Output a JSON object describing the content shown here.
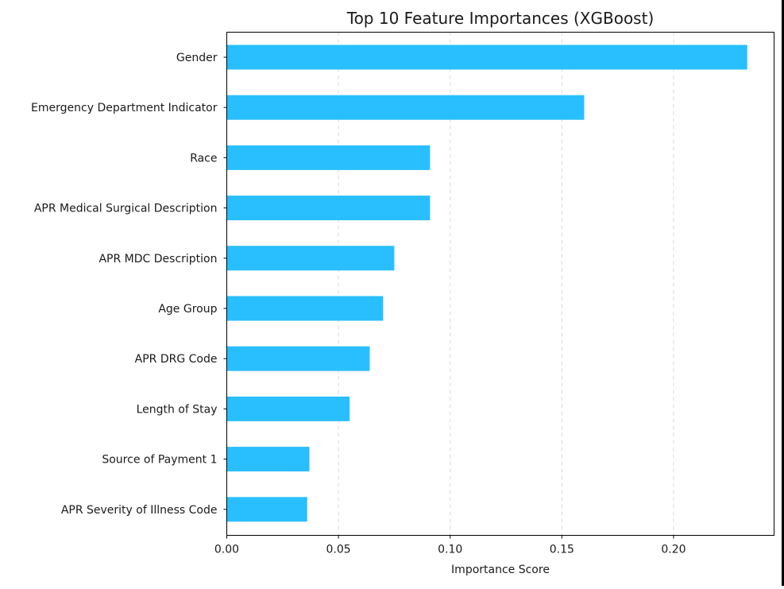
{
  "chart_data": {
    "type": "bar",
    "orientation": "horizontal",
    "title": "Top 10 Feature Importances (XGBoost)",
    "xlabel": "Importance Score",
    "ylabel": "",
    "xlim": [
      0,
      0.245
    ],
    "xticks": [
      0.0,
      0.05,
      0.1,
      0.15,
      0.2
    ],
    "xtick_labels": [
      "0.00",
      "0.05",
      "0.10",
      "0.15",
      "0.20"
    ],
    "grid": "x-dashed",
    "bar_color": "#29BFFF",
    "categories": [
      "Gender",
      "Emergency Department Indicator",
      "Race",
      "APR Medical Surgical Description",
      "APR MDC Description",
      "Age Group",
      "APR DRG Code",
      "Length of Stay",
      "Source of Payment 1",
      "APR Severity of Illness Code"
    ],
    "values": [
      0.233,
      0.16,
      0.091,
      0.091,
      0.075,
      0.07,
      0.064,
      0.055,
      0.037,
      0.036
    ]
  }
}
